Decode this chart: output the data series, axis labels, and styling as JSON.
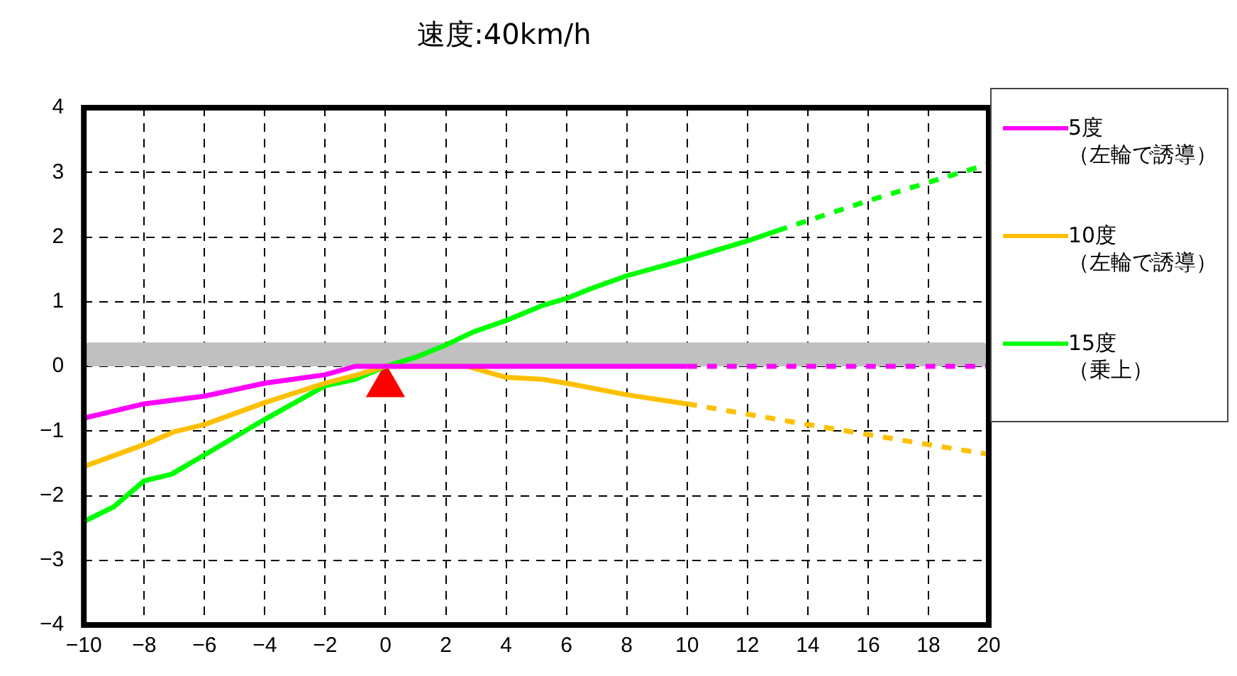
{
  "chart_data": {
    "type": "line",
    "title": "速度:40km/h",
    "xlim": [
      -10,
      20
    ],
    "xticks": [
      -10,
      -8,
      -6,
      -4,
      -2,
      0,
      2,
      4,
      6,
      8,
      10,
      12,
      14,
      16,
      18,
      20
    ],
    "ylim": [
      -4,
      4
    ],
    "yticks": [
      -4,
      -3,
      -2,
      -1,
      0,
      1,
      2,
      3,
      4
    ],
    "grid": true,
    "legend": "right",
    "marker": "none",
    "line_style": "solid",
    "bands": [
      {
        "axis": "y",
        "from": 0,
        "to": 0.37,
        "color": "#c0c0c0"
      }
    ],
    "series": [
      {
        "name": "5度（左輪で誘導）",
        "color": "#ff00ff",
        "x": [
          -10,
          -8,
          -6,
          -4,
          -2,
          -1,
          0,
          10
        ],
        "values": [
          -0.8,
          -0.58,
          -0.46,
          -0.26,
          -0.13,
          0,
          0,
          0
        ]
      },
      {
        "color": "#ff00ff",
        "line_style": "dashed",
        "x": [
          10,
          20
        ],
        "values": [
          0,
          0
        ]
      },
      {
        "name": "10度（左輪で誘導）",
        "color": "#ffc000",
        "x": [
          -10,
          -8,
          -7,
          -6,
          -4,
          -2,
          -1,
          0,
          2.7,
          4,
          5.2,
          6,
          8,
          10
        ],
        "values": [
          -1.55,
          -1.21,
          -1.01,
          -0.9,
          -0.56,
          -0.26,
          -0.14,
          0,
          0,
          -0.17,
          -0.2,
          -0.26,
          -0.44,
          -0.58
        ]
      },
      {
        "color": "#ffc000",
        "line_style": "dashed",
        "x": [
          10,
          14,
          18,
          20
        ],
        "values": [
          -0.58,
          -0.9,
          -1.21,
          -1.36
        ]
      },
      {
        "name": "15度（乗上）",
        "color": "#00ff00",
        "x": [
          -10,
          -9,
          -8,
          -7.1,
          -6,
          -4,
          -2,
          -1,
          0,
          1,
          2,
          2.9,
          4,
          5.2,
          6,
          6.8,
          8,
          10,
          12,
          13
        ],
        "values": [
          -2.4,
          -2.17,
          -1.77,
          -1.67,
          -1.37,
          -0.82,
          -0.3,
          -0.2,
          0,
          0.14,
          0.33,
          0.53,
          0.71,
          0.94,
          1.05,
          1.2,
          1.4,
          1.66,
          1.94,
          2.1
        ]
      },
      {
        "color": "#00ff00",
        "line_style": "dashed",
        "x": [
          13,
          16,
          20
        ],
        "values": [
          2.1,
          2.56,
          3.13
        ]
      },
      {
        "type": "scatter",
        "marker": "triangle",
        "color": "#ff0000",
        "x": [
          0
        ],
        "values": [
          -0.3
        ]
      }
    ]
  }
}
